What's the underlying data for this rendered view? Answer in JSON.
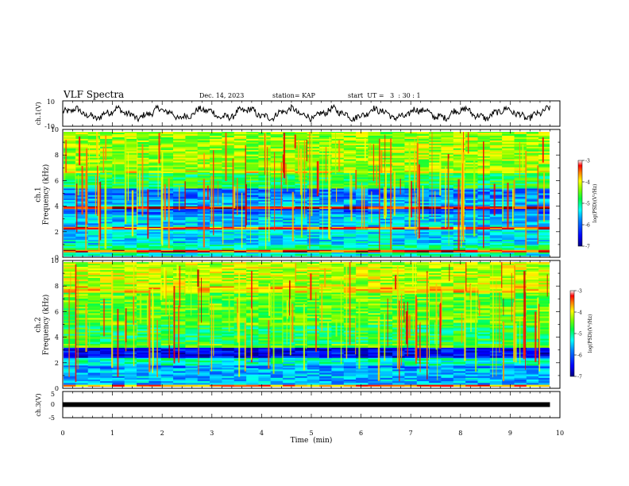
{
  "header": {
    "title": "VLF Spectra",
    "date": "Dec. 14, 2023",
    "station": "station= KAP",
    "start": "start  UT =   3  : 30 : 1"
  },
  "colors": {
    "spectrogram_scale": [
      "#000080",
      "#0000ff",
      "#0080ff",
      "#00ffff",
      "#00ff80",
      "#80ff00",
      "#ffff00",
      "#ff8000",
      "#ff0000",
      "#800000"
    ],
    "waveform": "#000000"
  },
  "chart_data": [
    {
      "type": "line",
      "panel": "ch1-waveform",
      "ylabel": "ch.1(V)",
      "xlim": [
        0,
        10
      ],
      "ylim": [
        -10,
        10
      ],
      "ytick_labels": [
        "10",
        "-10"
      ],
      "x_end": 9.8,
      "trend": "noisy oscillation roughly between -6 and 6 V centred near 0"
    },
    {
      "type": "heatmap",
      "panel": "ch1-spectrogram",
      "ylabel": "ch.1\nFrequency (kHz)",
      "ylim": [
        0,
        10
      ],
      "yticks": [
        "0",
        "2",
        "4",
        "6",
        "8",
        "10"
      ],
      "xlim": [
        0,
        10
      ],
      "colorbar": {
        "label": "log(PSD)(V²/Hz)",
        "ticks": [
          "-3",
          "-4",
          "-5",
          "-6",
          "-7"
        ],
        "range": [
          -7,
          -3
        ]
      },
      "bands": [
        {
          "from": 0.0,
          "to": 0.4,
          "level": -5.2
        },
        {
          "from": 0.4,
          "to": 0.6,
          "level": -3.3
        },
        {
          "from": 0.6,
          "to": 1.0,
          "level": -5.0
        },
        {
          "from": 1.0,
          "to": 2.2,
          "level": -5.4
        },
        {
          "from": 2.2,
          "to": 2.4,
          "level": -3.5
        },
        {
          "from": 2.4,
          "to": 3.4,
          "level": -5.5
        },
        {
          "from": 3.4,
          "to": 3.8,
          "level": -6.0
        },
        {
          "from": 3.8,
          "to": 4.0,
          "level": -3.2
        },
        {
          "from": 4.0,
          "to": 4.6,
          "level": -5.6
        },
        {
          "from": 4.6,
          "to": 5.4,
          "level": -5.9
        },
        {
          "from": 5.4,
          "to": 6.6,
          "level": -4.8
        },
        {
          "from": 6.6,
          "to": 6.8,
          "level": -4.0
        },
        {
          "from": 6.8,
          "to": 10.0,
          "level": -4.3
        }
      ]
    },
    {
      "type": "heatmap",
      "panel": "ch2-spectrogram",
      "ylabel": "ch.2\nFrequency (kHz)",
      "ylim": [
        0,
        10
      ],
      "yticks": [
        "0",
        "2",
        "4",
        "6",
        "8",
        "10"
      ],
      "xlim": [
        0,
        10
      ],
      "colorbar": {
        "label": "log(PSD)(V²/Hz)",
        "ticks": [
          "-3",
          "-4",
          "-5",
          "-6",
          "-7"
        ],
        "range": [
          -7,
          -3
        ]
      },
      "bands": [
        {
          "from": 0.0,
          "to": 0.3,
          "level": -3.6
        },
        {
          "from": 0.3,
          "to": 1.6,
          "level": -5.6
        },
        {
          "from": 1.6,
          "to": 1.8,
          "level": -5.9
        },
        {
          "from": 1.8,
          "to": 2.4,
          "level": -5.2
        },
        {
          "from": 2.4,
          "to": 3.2,
          "level": -6.5
        },
        {
          "from": 3.2,
          "to": 3.5,
          "level": -4.6
        },
        {
          "from": 3.5,
          "to": 5.0,
          "level": -4.8
        },
        {
          "from": 5.0,
          "to": 7.5,
          "level": -4.5
        },
        {
          "from": 7.5,
          "to": 8.0,
          "level": -3.9
        },
        {
          "from": 8.0,
          "to": 10.0,
          "level": -4.2
        }
      ]
    },
    {
      "type": "line",
      "panel": "ch3-waveform",
      "ylabel": "ch.3(V)",
      "xlabel": "Time  (min)",
      "xlim": [
        0,
        10
      ],
      "ylim": [
        -5,
        5
      ],
      "yticks": [
        "5",
        "0",
        "-5"
      ],
      "xticks": [
        "0",
        "1",
        "2",
        "3",
        "4",
        "5",
        "6",
        "7",
        "8",
        "9",
        "10"
      ],
      "x": [
        0,
        9.8
      ],
      "y": [
        0,
        0
      ]
    }
  ]
}
